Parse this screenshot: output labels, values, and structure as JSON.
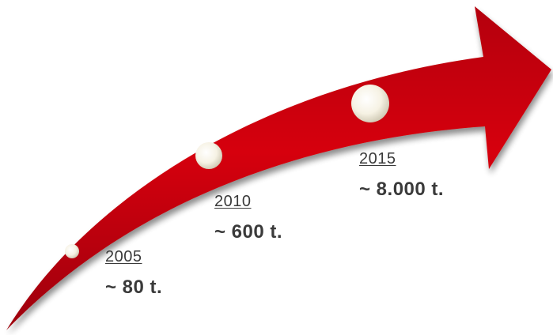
{
  "colors": {
    "arrow": "#c8000c",
    "arrow_dark": "#8f0008",
    "dot": "#f7f4e8",
    "text": "#3a3a3a"
  },
  "milestones": [
    {
      "year": "2005",
      "amount": "~ 80 t."
    },
    {
      "year": "2010",
      "amount": "~ 600 t."
    },
    {
      "year": "2015",
      "amount": "~ 8.000 t."
    }
  ]
}
